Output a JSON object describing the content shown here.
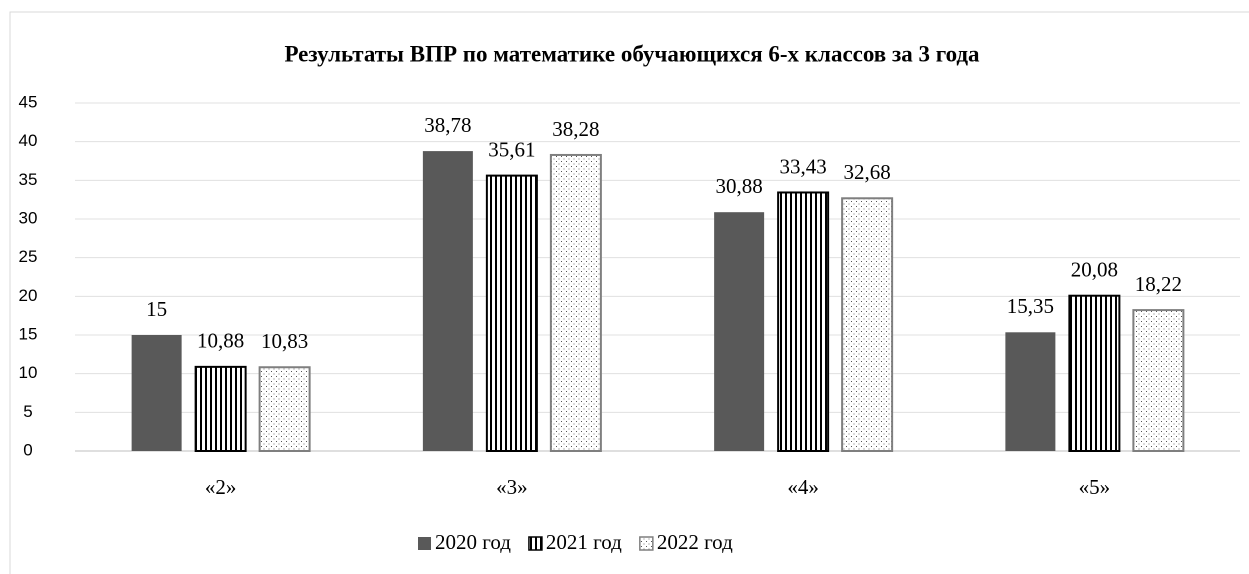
{
  "chart_data": {
    "type": "bar",
    "title": "Результаты  ВПР по математике  обучающихся 6-х классов за 3 года",
    "categories": [
      "«2»",
      "«3»",
      "«4»",
      "«5»"
    ],
    "series": [
      {
        "name": "2020 год",
        "color": "#595959",
        "pattern": "solid",
        "values": [
          15,
          38.78,
          30.88,
          15.35
        ],
        "value_labels": [
          "15",
          "38,78",
          "30,88",
          "15,35"
        ]
      },
      {
        "name": "2021 год",
        "color": "#000000",
        "pattern": "vertical-stripes",
        "values": [
          10.88,
          35.61,
          33.43,
          20.08
        ],
        "value_labels": [
          "10,88",
          "35,61",
          "33,43",
          "20,08"
        ]
      },
      {
        "name": "2022 год",
        "color": "#7f7f7f",
        "pattern": "dots",
        "values": [
          10.83,
          38.28,
          32.68,
          18.22
        ],
        "value_labels": [
          "10,83",
          "38,28",
          "32,68",
          "18,22"
        ]
      }
    ],
    "ylim": [
      0,
      45
    ],
    "yticks": [
      0,
      5,
      10,
      15,
      20,
      25,
      30,
      35,
      40,
      45
    ],
    "grid": true,
    "legend": "bottom"
  }
}
